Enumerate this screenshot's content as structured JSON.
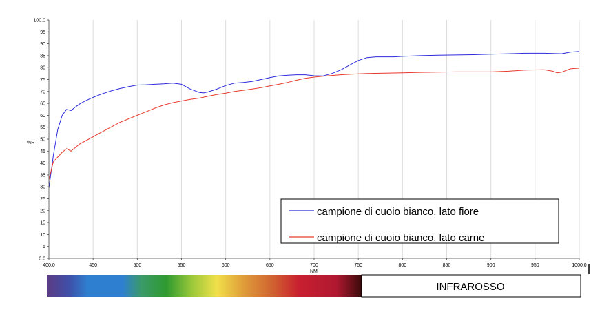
{
  "chart_data": {
    "type": "line",
    "xlabel": "NM",
    "ylabel": "%R",
    "xlim": [
      400,
      1000
    ],
    "ylim": [
      0,
      100
    ],
    "x_ticks": [
      "400.0",
      "450",
      "500",
      "550",
      "600",
      "650",
      "700",
      "750",
      "800",
      "850",
      "900",
      "950",
      "1000.0"
    ],
    "x_tick_values": [
      400,
      450,
      500,
      550,
      600,
      650,
      700,
      750,
      800,
      850,
      900,
      950,
      1000
    ],
    "y_ticks": [
      "0.0",
      "5",
      "10",
      "15",
      "20",
      "25",
      "30",
      "35",
      "40",
      "45",
      "50",
      "55",
      "60",
      "65",
      "70",
      "75",
      "80",
      "85",
      "90",
      "95",
      "100.0"
    ],
    "y_tick_values": [
      0,
      5,
      10,
      15,
      20,
      25,
      30,
      35,
      40,
      45,
      50,
      55,
      60,
      65,
      70,
      75,
      80,
      85,
      90,
      95,
      100
    ],
    "grid": "vertical",
    "legend_position": "bottom-right",
    "series": [
      {
        "name": "campione di cuoio bianco, lato fiore",
        "color": "#2b2bdc",
        "x": [
          400,
          405,
          410,
          415,
          420,
          425,
          430,
          435,
          440,
          445,
          450,
          460,
          470,
          480,
          490,
          500,
          510,
          520,
          530,
          540,
          550,
          560,
          570,
          575,
          580,
          590,
          600,
          610,
          620,
          630,
          640,
          650,
          660,
          670,
          680,
          690,
          700,
          710,
          720,
          730,
          740,
          750,
          760,
          770,
          780,
          790,
          800,
          820,
          840,
          860,
          880,
          900,
          920,
          940,
          960,
          970,
          980,
          990,
          1000
        ],
        "y": [
          29.5,
          43,
          54,
          60,
          62.5,
          62,
          63.5,
          64.8,
          65.8,
          66.7,
          67.5,
          69,
          70.2,
          71.2,
          72,
          72.7,
          72.8,
          73,
          73.2,
          73.5,
          73,
          71,
          69.6,
          69.4,
          69.8,
          71,
          72.5,
          73.5,
          73.8,
          74.2,
          75,
          75.8,
          76.5,
          76.8,
          77,
          77,
          76.6,
          76.5,
          77.5,
          79,
          81,
          83,
          84.2,
          84.5,
          84.5,
          84.5,
          84.7,
          85,
          85.2,
          85.3,
          85.4,
          85.6,
          85.8,
          86,
          86,
          85.9,
          85.8,
          86.5,
          86.8
        ]
      },
      {
        "name": "campione di cuoio bianco, lato carne",
        "color": "#e8392c",
        "x": [
          400,
          405,
          410,
          415,
          420,
          425,
          430,
          435,
          440,
          445,
          450,
          460,
          470,
          480,
          490,
          500,
          510,
          520,
          530,
          540,
          550,
          560,
          570,
          580,
          590,
          600,
          610,
          620,
          630,
          640,
          650,
          660,
          670,
          680,
          690,
          700,
          710,
          720,
          730,
          740,
          750,
          760,
          770,
          780,
          800,
          820,
          840,
          860,
          880,
          900,
          920,
          940,
          960,
          970,
          975,
          980,
          990,
          1000
        ],
        "y": [
          33,
          40.5,
          42.5,
          44.5,
          46,
          45,
          46.5,
          48,
          49,
          50,
          51,
          53,
          55,
          57,
          58.5,
          60,
          61.5,
          63,
          64.3,
          65.3,
          66,
          66.7,
          67.2,
          68,
          68.7,
          69.3,
          70,
          70.5,
          71,
          71.6,
          72.3,
          73,
          73.8,
          74.7,
          75.5,
          76,
          76.4,
          76.7,
          77,
          77.2,
          77.4,
          77.5,
          77.6,
          77.7,
          77.8,
          78,
          78.1,
          78.2,
          78.2,
          78.2,
          78.5,
          79,
          79.1,
          78.5,
          77.8,
          78.1,
          79.5,
          79.8
        ]
      }
    ],
    "spectrum_label": "INFRAROSSO"
  }
}
